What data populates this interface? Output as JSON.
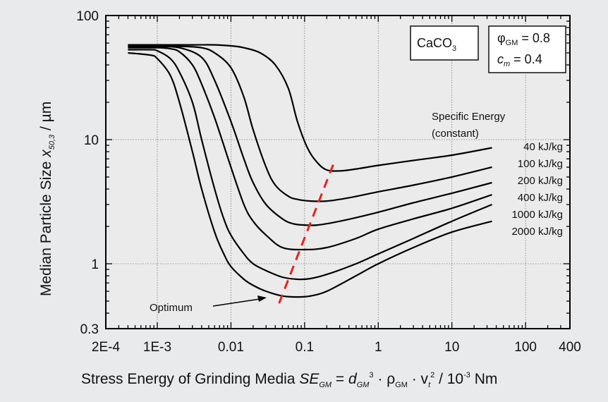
{
  "chart_data": {
    "type": "line",
    "x_scale": "log",
    "y_scale": "log",
    "xlim": [
      0.0002,
      400
    ],
    "ylim": [
      0.3,
      100
    ],
    "x_ticks": [
      {
        "value": 0.0002,
        "label": "2E-4"
      },
      {
        "value": 0.001,
        "label": "1E-3"
      },
      {
        "value": 0.01,
        "label": "0.01"
      },
      {
        "value": 0.1,
        "label": "0.1"
      },
      {
        "value": 1,
        "label": "1"
      },
      {
        "value": 10,
        "label": "10"
      },
      {
        "value": 100,
        "label": "100"
      },
      {
        "value": 400,
        "label": "400"
      }
    ],
    "y_ticks": [
      {
        "value": 100,
        "label": "100"
      },
      {
        "value": 10,
        "label": "10"
      },
      {
        "value": 1,
        "label": "1"
      },
      {
        "value": 0.3,
        "label": "0.3"
      }
    ],
    "grid_y": [
      10,
      1
    ],
    "grid_x": [
      0.001,
      0.01,
      0.1,
      1,
      10,
      100
    ],
    "ylabel": {
      "main": "Median Particle Size",
      "var": "x",
      "var_sub": "50,3",
      "unit": " / µm"
    },
    "xlabel": {
      "prefix": "Stress Energy of Grinding Media ",
      "se": "SE",
      "se_sub": "GM",
      "eq": " = ",
      "d": "d",
      "d_sub": "GM",
      "d_sup": "3",
      "rho_part": " · ρ",
      "rho_sub": "GM",
      "v_part": " · v",
      "v_sub": "t",
      "v_sup": "2",
      "unit": " / 10",
      "unit_sup": "-3",
      "unit_end": " Nm"
    },
    "legend_title": [
      "Specific Energy",
      "(constant)"
    ],
    "series": [
      {
        "name": "40 kJ/kg",
        "x": [
          0.0004,
          0.001,
          0.003,
          0.006,
          0.01,
          0.015,
          0.025,
          0.04,
          0.06,
          0.08,
          0.11,
          0.15,
          0.2,
          0.3,
          0.5,
          1,
          3,
          10,
          35
        ],
        "y": [
          58,
          58,
          58,
          58,
          57,
          55,
          50,
          40,
          26,
          14,
          8.5,
          6.5,
          5.7,
          5.6,
          5.8,
          6.2,
          6.8,
          7.5,
          8.6
        ]
      },
      {
        "name": "100 kJ/kg",
        "x": [
          0.0004,
          0.001,
          0.002,
          0.004,
          0.006,
          0.01,
          0.015,
          0.02,
          0.03,
          0.04,
          0.06,
          0.08,
          0.12,
          0.2,
          0.4,
          1,
          3,
          10,
          35
        ],
        "y": [
          57,
          57,
          56.5,
          55,
          50,
          38,
          22,
          12,
          6,
          4.3,
          3.5,
          3.3,
          3.2,
          3.2,
          3.4,
          3.8,
          4.3,
          5,
          6
        ]
      },
      {
        "name": "200 kJ/kg",
        "x": [
          0.0004,
          0.001,
          0.002,
          0.004,
          0.006,
          0.01,
          0.015,
          0.02,
          0.03,
          0.05,
          0.07,
          0.1,
          0.15,
          0.3,
          1,
          3,
          10,
          35
        ],
        "y": [
          56,
          56,
          55,
          46,
          30,
          14,
          7,
          4.5,
          3,
          2.3,
          2.1,
          2.05,
          2.05,
          2.2,
          2.6,
          3.1,
          3.7,
          4.5
        ]
      },
      {
        "name": "400 kJ/kg",
        "x": [
          0.0004,
          0.001,
          0.0015,
          0.002,
          0.003,
          0.004,
          0.006,
          0.01,
          0.015,
          0.02,
          0.03,
          0.05,
          0.1,
          0.2,
          0.5,
          1,
          3,
          10,
          35
        ],
        "y": [
          55,
          55,
          54,
          51,
          40,
          28,
          15,
          6,
          3,
          2.2,
          1.7,
          1.35,
          1.3,
          1.35,
          1.6,
          1.9,
          2.3,
          2.8,
          3.6
        ]
      },
      {
        "name": "1000 kJ/kg",
        "x": [
          0.0004,
          0.0008,
          0.001,
          0.0015,
          0.002,
          0.003,
          0.004,
          0.006,
          0.008,
          0.01,
          0.015,
          0.02,
          0.03,
          0.05,
          0.08,
          0.12,
          0.2,
          0.5,
          1,
          3,
          10,
          35
        ],
        "y": [
          53,
          53,
          52,
          45,
          35,
          20,
          10,
          4,
          2.3,
          1.7,
          1.2,
          1,
          0.88,
          0.78,
          0.75,
          0.76,
          0.82,
          1,
          1.2,
          1.6,
          2.2,
          3.0
        ]
      },
      {
        "name": "2000 kJ/kg",
        "x": [
          0.0004,
          0.0008,
          0.001,
          0.0015,
          0.002,
          0.003,
          0.004,
          0.006,
          0.008,
          0.01,
          0.015,
          0.02,
          0.03,
          0.05,
          0.08,
          0.12,
          0.2,
          0.5,
          1,
          3,
          10,
          35
        ],
        "y": [
          50,
          48,
          45,
          33,
          20,
          8,
          4,
          1.8,
          1.2,
          0.95,
          0.75,
          0.67,
          0.6,
          0.55,
          0.54,
          0.55,
          0.6,
          0.8,
          1.0,
          1.35,
          1.8,
          2.2
        ]
      }
    ],
    "optimum_line": {
      "x": [
        0.045,
        0.25
      ],
      "y": [
        0.48,
        6.5
      ],
      "color": "#e8211d"
    },
    "optimum_annotation": {
      "text": "Optimum",
      "x": 0.045,
      "y": 0.55
    },
    "material_box": {
      "main": "CaCO",
      "sub": "3"
    },
    "params_box": {
      "phi": "φ",
      "phi_sub": "GM",
      "phi_val": " = 0.8",
      "c": "c",
      "c_sub": "m",
      "c_val": " = 0.4"
    },
    "grid": "dotted at 1 and 10 (horizontal) and decades (vertical)",
    "legend_placement": "right"
  }
}
